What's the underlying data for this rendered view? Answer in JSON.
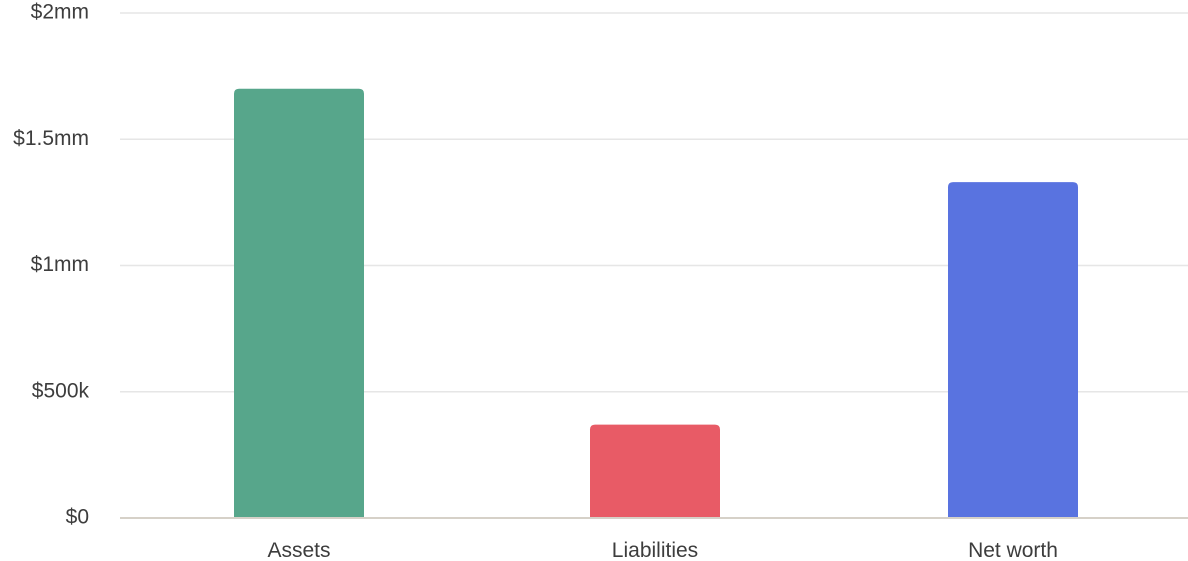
{
  "chart_data": {
    "type": "bar",
    "title": "",
    "xlabel": "",
    "ylabel": "",
    "categories": [
      "Assets",
      "Liabilities",
      "Net worth"
    ],
    "values": [
      1700000,
      370000,
      1330000
    ],
    "bar_colors": [
      "#57a68b",
      "#e85b66",
      "#5973e0"
    ],
    "ylim": [
      0,
      2000000
    ],
    "y_ticks": [
      0,
      500000,
      1000000,
      1500000,
      2000000
    ],
    "y_tick_labels": [
      "$0",
      "$500k",
      "$1mm",
      "$1.5mm",
      "$2mm"
    ],
    "grid": true,
    "gridline_color": "#e6e6e6",
    "baseline_color": "#d6d1c8",
    "legend": "none"
  }
}
